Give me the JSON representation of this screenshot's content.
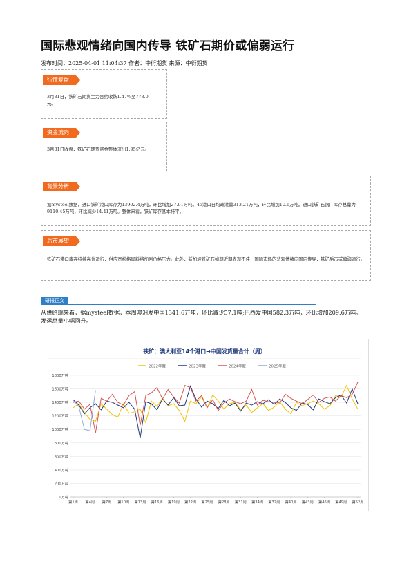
{
  "article": {
    "title": "国际悲观情绪向国内传导 铁矿石期价或偏弱运行",
    "meta": "发布时间：2025-04-01 11:04:37 作者：中衍期货 来源：中衍期货"
  },
  "sections": [
    {
      "tag": "行情复盘",
      "text": "3月31日，铁矿石期货主力合约收跌1.47%至773.0元。"
    },
    {
      "tag": "资金流向",
      "text": "3月31日收盘，铁矿石期货资金整体流出1.95亿元。"
    },
    {
      "tag": "背景分析",
      "text": "据mysteel数据，进口铁矿港口库存为13902.4万吨，环比增加27.91万吨。45港口日均疏港量313.21万吨，环比增加10.6万吨。进口铁矿石钢厂库存总量为9110.45万吨，环比减少14.41万吨。整体来看，铁矿库存基本持平。"
    },
    {
      "tag": "后市展望",
      "text": "铁矿石港口库存持续高位运行，供应宽松格局料将加剧价格压力。此外，新加坡铁矿石掉期近期表现不佳，国际市场的悲观情绪向国内传导，铁矿后市或偏弱运行。"
    }
  ],
  "report": {
    "tag": "研报正文",
    "paragraph": "从供给端来看，据mysteel数据，本周澳洲发中国1341.6万吨，环比减少57.1吨;巴西发中国582.3万吨，环比增加209.6万吨。发运总量小幅回升。"
  },
  "chart_data": {
    "type": "line",
    "title": "铁矿：澳大利亚14个港口→中国发货量合计（周）",
    "ylim": [
      0,
      1800
    ],
    "y_ticks": [
      "0万吨",
      "200万吨",
      "400万吨",
      "600万吨",
      "800万吨",
      "1000万吨",
      "1200万吨",
      "1400万吨",
      "1600万吨",
      "1800万吨"
    ],
    "x_ticks": [
      "第1周",
      "第4周",
      "第7周",
      "第10周",
      "第13周",
      "第16周",
      "第19周",
      "第22周",
      "第25周",
      "第28周",
      "第31周",
      "第34周",
      "第37周",
      "第40周",
      "第43周",
      "第46周",
      "第49周",
      "第52周"
    ],
    "legend_position": "top",
    "grid": true,
    "series": [
      {
        "name": "2022年度",
        "color": "#f2c200",
        "values": [
          1320,
          1380,
          1250,
          1150,
          1120,
          1380,
          1300,
          1220,
          1180,
          1380,
          1240,
          1260,
          1300,
          1100,
          1420,
          1340,
          1460,
          1350,
          1380,
          1280,
          1120,
          1420,
          1380,
          1480,
          1320,
          1510,
          1420,
          1300,
          1380,
          1400,
          1290,
          1360,
          1250,
          1320,
          1380,
          1280,
          1330,
          1410,
          1300,
          1230,
          1400,
          1350,
          1380,
          1420,
          1380,
          1300,
          1350,
          1500,
          1480,
          1650,
          1450,
          1300
        ]
      },
      {
        "name": "2023年度",
        "color": "#1f3a7a",
        "values": [
          1440,
          1360,
          1230,
          1320,
          1380,
          1290,
          1420,
          1400,
          1360,
          1320,
          1400,
          1300,
          870,
          1410,
          1380,
          1290,
          1450,
          1360,
          1470,
          1350,
          1360,
          1640,
          1450,
          1330,
          1420,
          1380,
          1310,
          1430,
          1350,
          1390,
          1270,
          1390,
          1360,
          1410,
          1380,
          1440,
          1370,
          1450,
          1400,
          1320,
          1280,
          1390,
          1370,
          1290,
          1450,
          1410,
          1380,
          1470,
          1510,
          1390,
          1600,
          1380
        ]
      },
      {
        "name": "2024年度",
        "color": "#d9534f",
        "values": [
          1400,
          1420,
          1300,
          1370,
          950,
          1460,
          1420,
          1520,
          1400,
          1360,
          1500,
          1560,
          1060,
          1500,
          1540,
          1620,
          1450,
          1590,
          1480,
          1390,
          1650,
          1620,
          1420,
          1500,
          1320,
          1440,
          1280,
          1390,
          1450,
          1410,
          1380,
          1420,
          1590,
          1360,
          1430,
          1410,
          1400,
          1390,
          1520,
          1460,
          1420,
          1380,
          1440,
          1510,
          1400,
          1460,
          1480,
          1420,
          1500,
          1470,
          1520,
          1700
        ]
      },
      {
        "name": "2025年度",
        "color": "#8fa9d6",
        "values": [
          1430,
          1340,
          1000,
          980,
          1580
        ]
      }
    ]
  }
}
